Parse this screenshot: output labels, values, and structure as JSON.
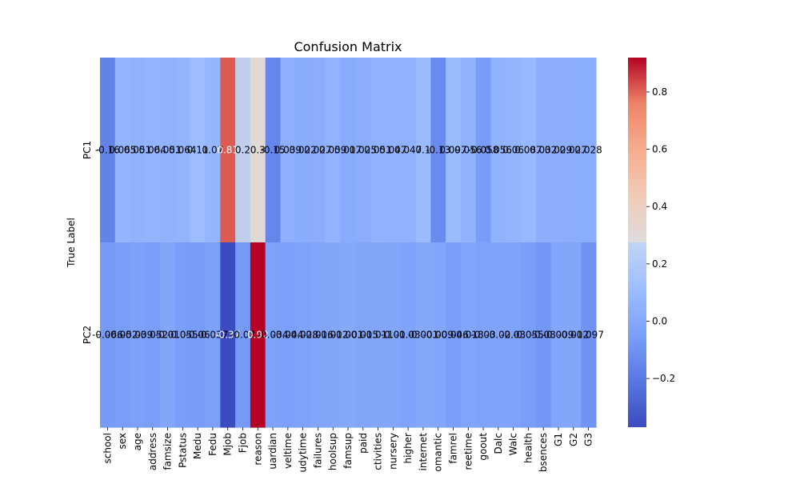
{
  "chart_data": {
    "type": "heatmap",
    "title": "Confusion Matrix",
    "xlabel": "",
    "ylabel": "True Label",
    "row_labels": [
      "PC1",
      "PC2"
    ],
    "column_labels": [
      "school",
      "sex",
      "age",
      "address",
      "famsize",
      "Pstatus",
      "Medu",
      "Fedu",
      "Mjob",
      "Fjob",
      "reason",
      "guardian",
      "traveltime",
      "studytime",
      "failures",
      "schoolsup",
      "famsup",
      "paid",
      "activities",
      "nursery",
      "higher",
      "internet",
      "romantic",
      "famrel",
      "freetime",
      "goout",
      "Dalc",
      "Walc",
      "health",
      "absences",
      "G1",
      "G2",
      "G3"
    ],
    "tick_labels_shown": [
      "school",
      "sex",
      "age",
      "address",
      "famsize",
      "Pstatus",
      "Medu",
      "Fedu",
      "Mjob",
      "Fjob",
      "reason",
      "uardian",
      "veltime",
      "udytime",
      "failures",
      "hoolsup",
      "famsup",
      "paid",
      "ctivities",
      "nursery",
      "higher",
      "internet",
      "omantic",
      "famrel",
      "reetime",
      "goout",
      "Dalc",
      "Walc",
      "health",
      "bsences",
      "G1",
      "G2",
      "G3"
    ],
    "values": [
      [
        -0.16,
        0.065,
        0.051,
        0.064,
        0.051,
        0.064,
        0.11,
        0.07,
        0.81,
        0.2,
        0.3,
        -0.15,
        0.039,
        0.022,
        0.027,
        0.059,
        0.017,
        0.025,
        0.051,
        0.047,
        0.047,
        0.1,
        -0.13,
        0.097,
        0.056,
        -0.058,
        0.056,
        0.06,
        0.087,
        0.032,
        0.029,
        0.027,
        0.028
      ],
      [
        -0.066,
        -0.052,
        -0.039,
        -0.052,
        -0.01,
        -0.055,
        -0.06,
        -0.037,
        -0.37,
        -0.07,
        0.92,
        -0.034,
        -0.044,
        -0.028,
        -0.016,
        -0.012,
        -0.001,
        -0.015,
        -0.011,
        -0.01,
        -0.03,
        -0.001,
        -0.009,
        -0.046,
        -0.018,
        -0.03,
        -0.02,
        -0.03,
        -0.055,
        -0.08,
        -0.009,
        -0.012,
        -0.097
      ]
    ],
    "cell_text": [
      [
        "-0.16",
        "0.065",
        "0.051",
        "0.064",
        "0.051",
        "0.064",
        "0.11",
        "0.07",
        "0.81",
        "0.2",
        "0.3",
        "-0.15",
        "0.039",
        "0.022",
        "0.027",
        "0.059",
        "0.017",
        "0.025",
        "0.051",
        "0.047",
        "0.047",
        "0.1",
        "-0.13",
        "0.097",
        "0.056",
        "-0.058",
        "0.056",
        "0.06",
        "0.087",
        "0.032",
        "0.029",
        "0.027",
        "0.028"
      ],
      [
        "-0.066",
        "-0.052",
        "-0.039",
        "-0.052",
        "-0.01",
        "-0.055",
        "-0.06",
        "-0.037",
        "-0.37",
        "-0.07",
        "0.92",
        "-0.034",
        "-0.044",
        "-0.028",
        "-0.016",
        "-0.012",
        "-0.001",
        "-0.015",
        "-0.011",
        "-0.01",
        "-0.03",
        "-0.001",
        "-0.009",
        "-0.046",
        "-0.018",
        "-0.03",
        "-0.02",
        "-0.03",
        "-0.055",
        "-0.08",
        "-0.009",
        "-0.012",
        "-0.097"
      ]
    ],
    "vmin": -0.37,
    "vmax": 0.92,
    "colormap": "coolwarm",
    "colorbar_ticks": [
      -0.2,
      0.0,
      0.2,
      0.4,
      0.6,
      0.8
    ],
    "colorbar_tick_labels": [
      "−0.2",
      "0.0",
      "0.2",
      "0.4",
      "0.6",
      "0.8"
    ],
    "grid": false,
    "legend": "colorbar-right"
  }
}
